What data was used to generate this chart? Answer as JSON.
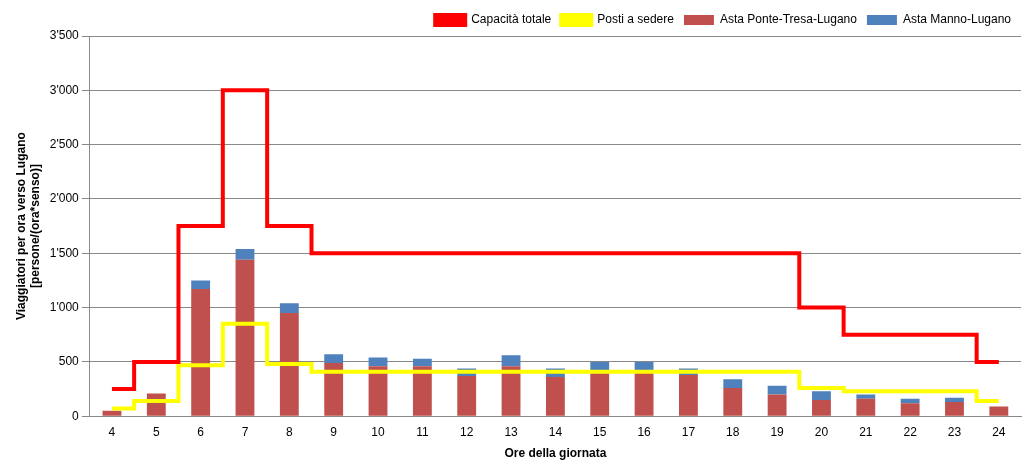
{
  "chart_data": {
    "type": "bar",
    "stacked": true,
    "xlabel": "Ore della giornata",
    "ylabel": "Viaggiatori per ora verso Lugano\n[persone/(ora*senso)]",
    "categories": [
      "4",
      "5",
      "6",
      "7",
      "8",
      "9",
      "10",
      "11",
      "12",
      "13",
      "14",
      "15",
      "16",
      "17",
      "18",
      "19",
      "20",
      "21",
      "22",
      "23",
      "24"
    ],
    "series": [
      {
        "name": "Asta Ponte-Tresa-Lugano",
        "color": "#c0504d",
        "values": [
          50,
          210,
          1170,
          1440,
          950,
          490,
          460,
          460,
          370,
          460,
          360,
          400,
          400,
          380,
          260,
          200,
          150,
          160,
          120,
          130,
          90
        ]
      },
      {
        "name": "Asta Manno-Lugano",
        "color": "#4f81bd",
        "values": [
          0,
          0,
          80,
          100,
          90,
          80,
          80,
          70,
          70,
          100,
          80,
          100,
          100,
          60,
          80,
          80,
          80,
          40,
          40,
          40,
          0
        ]
      },
      {
        "name": "Capacità totale",
        "type": "step",
        "color": "#ff0000",
        "values": [
          250,
          500,
          1750,
          3000,
          1750,
          1500,
          1500,
          1500,
          1500,
          1500,
          1500,
          1500,
          1500,
          1500,
          1500,
          1500,
          1000,
          750,
          750,
          750,
          500
        ]
      },
      {
        "name": "Posti a sedere",
        "type": "step",
        "color": "#ffff00",
        "values": [
          70,
          140,
          470,
          850,
          480,
          410,
          410,
          410,
          410,
          410,
          410,
          410,
          410,
          410,
          410,
          410,
          260,
          230,
          230,
          230,
          140
        ]
      }
    ],
    "ylim": [
      0,
      3500
    ],
    "yticks": [
      0,
      500,
      {
        "value": 1000,
        "label": "1'000"
      },
      {
        "value": 1500,
        "label": "1'500"
      },
      {
        "value": 2000,
        "label": "2'000"
      },
      {
        "value": 2500,
        "label": "2'500"
      },
      {
        "value": 3000,
        "label": "3'000"
      },
      {
        "value": 3500,
        "label": "3'500"
      }
    ],
    "grid": "y",
    "legend": "top right"
  }
}
